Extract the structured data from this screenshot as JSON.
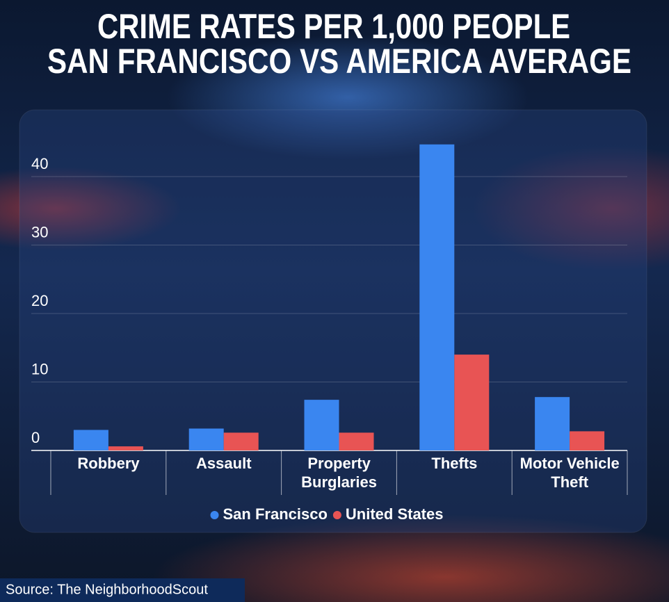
{
  "chart_data": {
    "type": "bar",
    "title": "CRIME RATES PER 1,000 PEOPLE",
    "subtitle": "SAN FRANCISCO VS AMERICA AVERAGE",
    "categories": [
      "Robbery",
      "Assault",
      "Property Burglaries",
      "Thefts",
      "Motor Vehicle Theft"
    ],
    "series": [
      {
        "name": "San Francisco",
        "color": "#3a86f0",
        "values": [
          3.0,
          3.2,
          7.4,
          44.7,
          7.8
        ]
      },
      {
        "name": "United States",
        "color": "#e85454",
        "values": [
          0.6,
          2.6,
          2.6,
          14.0,
          2.8
        ]
      }
    ],
    "ylim": [
      0,
      46.5
    ],
    "yticks": [
      0,
      10,
      20,
      30,
      40
    ],
    "grid": true,
    "legend": "bottom",
    "source": "Source: The NeighborhoodScout"
  }
}
